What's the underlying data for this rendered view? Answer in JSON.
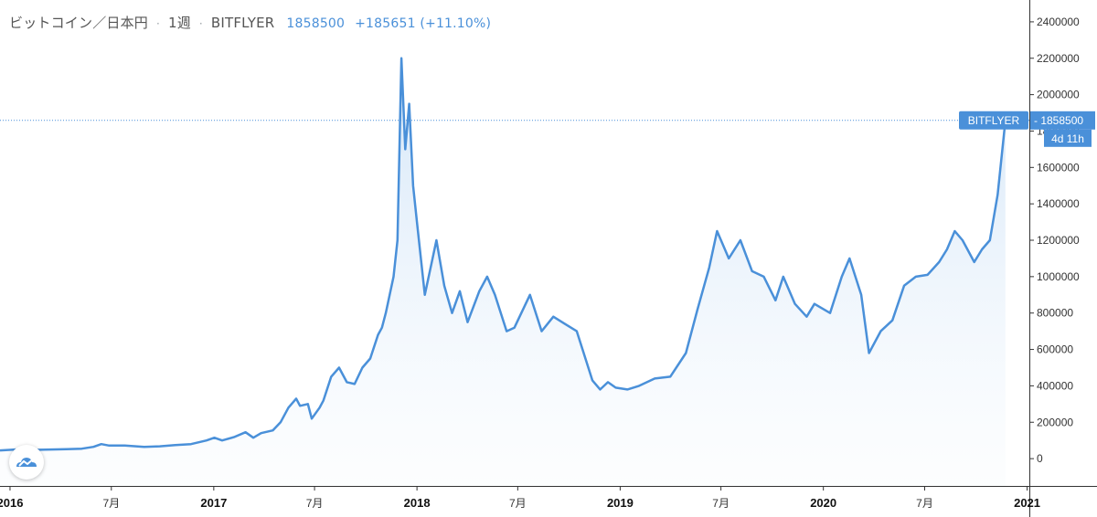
{
  "header": {
    "pair": "ビットコイン／日本円",
    "sep1": "·",
    "interval": "1週",
    "sep2": "·",
    "exchange": "BITFLYER",
    "last": "1858500",
    "change": "+185651 (+11.10%)"
  },
  "price_tag": {
    "exchange_label": "BITFLYER",
    "price_label": "1858500",
    "countdown_label": "4d 11h"
  },
  "colors": {
    "line": "#4a90d9",
    "fill_top": "#cfe3f7",
    "tag_bg": "#4a90d9",
    "axis": "#333333",
    "price_line": "#4a90d9"
  },
  "logo_icon": "tradingview-cloud-icon",
  "chart_data": {
    "type": "area",
    "title": "",
    "xlabel": "",
    "ylabel": "",
    "ylim": [
      -150000,
      2520000
    ],
    "xlim": [
      "2015-12-14",
      "2021-01-05"
    ],
    "grid": false,
    "y_axis_position": "right",
    "y_ticks": [
      0,
      200000,
      400000,
      600000,
      800000,
      1000000,
      1200000,
      1400000,
      1600000,
      1800000,
      2000000,
      2200000,
      2400000
    ],
    "x_ticks": [
      {
        "label": "2016",
        "date": "2016-01-01",
        "major": true
      },
      {
        "label": "7月",
        "date": "2016-07-01",
        "major": false
      },
      {
        "label": "2017",
        "date": "2017-01-01",
        "major": true
      },
      {
        "label": "7月",
        "date": "2017-07-01",
        "major": false
      },
      {
        "label": "2018",
        "date": "2018-01-01",
        "major": true
      },
      {
        "label": "7月",
        "date": "2018-07-01",
        "major": false
      },
      {
        "label": "2019",
        "date": "2019-01-01",
        "major": true
      },
      {
        "label": "7月",
        "date": "2019-07-01",
        "major": false
      },
      {
        "label": "2020",
        "date": "2020-01-01",
        "major": true
      },
      {
        "label": "7月",
        "date": "2020-07-01",
        "major": false
      },
      {
        "label": "2021",
        "date": "2021-01-01",
        "major": true
      }
    ],
    "last_price": 1858500,
    "series": [
      {
        "name": "BITFLYER",
        "x": [
          "2015-12-14",
          "2016-01-11",
          "2016-02-15",
          "2016-03-14",
          "2016-04-11",
          "2016-05-09",
          "2016-05-30",
          "2016-06-13",
          "2016-06-27",
          "2016-07-25",
          "2016-08-29",
          "2016-09-26",
          "2016-10-24",
          "2016-11-21",
          "2016-12-19",
          "2017-01-02",
          "2017-01-16",
          "2017-02-06",
          "2017-02-27",
          "2017-03-13",
          "2017-03-27",
          "2017-04-17",
          "2017-05-01",
          "2017-05-15",
          "2017-05-29",
          "2017-06-05",
          "2017-06-19",
          "2017-06-26",
          "2017-07-10",
          "2017-07-17",
          "2017-07-31",
          "2017-08-14",
          "2017-08-28",
          "2017-09-11",
          "2017-09-25",
          "2017-10-09",
          "2017-10-23",
          "2017-10-30",
          "2017-11-06",
          "2017-11-20",
          "2017-11-27",
          "2017-12-04",
          "2017-12-11",
          "2017-12-18",
          "2017-12-25",
          "2018-01-01",
          "2018-01-15",
          "2018-01-29",
          "2018-02-05",
          "2018-02-19",
          "2018-03-05",
          "2018-03-19",
          "2018-04-02",
          "2018-04-23",
          "2018-05-07",
          "2018-05-21",
          "2018-06-11",
          "2018-06-25",
          "2018-07-23",
          "2018-08-13",
          "2018-09-03",
          "2018-09-24",
          "2018-10-15",
          "2018-11-12",
          "2018-11-26",
          "2018-12-10",
          "2018-12-24",
          "2019-01-14",
          "2019-02-04",
          "2019-03-04",
          "2019-04-01",
          "2019-04-29",
          "2019-05-20",
          "2019-06-10",
          "2019-06-24",
          "2019-07-15",
          "2019-08-05",
          "2019-08-26",
          "2019-09-16",
          "2019-10-07",
          "2019-10-21",
          "2019-11-11",
          "2019-12-02",
          "2019-12-16",
          "2020-01-13",
          "2020-02-03",
          "2020-02-17",
          "2020-03-09",
          "2020-03-23",
          "2020-04-13",
          "2020-05-04",
          "2020-05-25",
          "2020-06-15",
          "2020-07-06",
          "2020-07-27",
          "2020-08-10",
          "2020-08-24",
          "2020-09-07",
          "2020-09-28",
          "2020-10-12",
          "2020-10-26",
          "2020-11-09",
          "2020-11-23"
        ],
        "y": [
          45000,
          50000,
          48000,
          50000,
          52000,
          55000,
          65000,
          80000,
          72000,
          72000,
          65000,
          68000,
          75000,
          80000,
          100000,
          115000,
          100000,
          118000,
          145000,
          115000,
          140000,
          155000,
          200000,
          280000,
          330000,
          290000,
          300000,
          220000,
          280000,
          320000,
          450000,
          500000,
          420000,
          410000,
          500000,
          550000,
          680000,
          720000,
          800000,
          1000000,
          1200000,
          2200000,
          1700000,
          1950000,
          1500000,
          1300000,
          900000,
          1100000,
          1200000,
          950000,
          800000,
          920000,
          750000,
          920000,
          1000000,
          900000,
          700000,
          720000,
          900000,
          700000,
          780000,
          740000,
          700000,
          430000,
          380000,
          420000,
          390000,
          380000,
          400000,
          440000,
          450000,
          580000,
          820000,
          1050000,
          1250000,
          1100000,
          1200000,
          1030000,
          1000000,
          870000,
          1000000,
          850000,
          780000,
          850000,
          800000,
          1000000,
          1100000,
          900000,
          580000,
          700000,
          760000,
          950000,
          1000000,
          1010000,
          1080000,
          1150000,
          1250000,
          1200000,
          1080000,
          1150000,
          1200000,
          1450000,
          1858500
        ]
      }
    ]
  }
}
